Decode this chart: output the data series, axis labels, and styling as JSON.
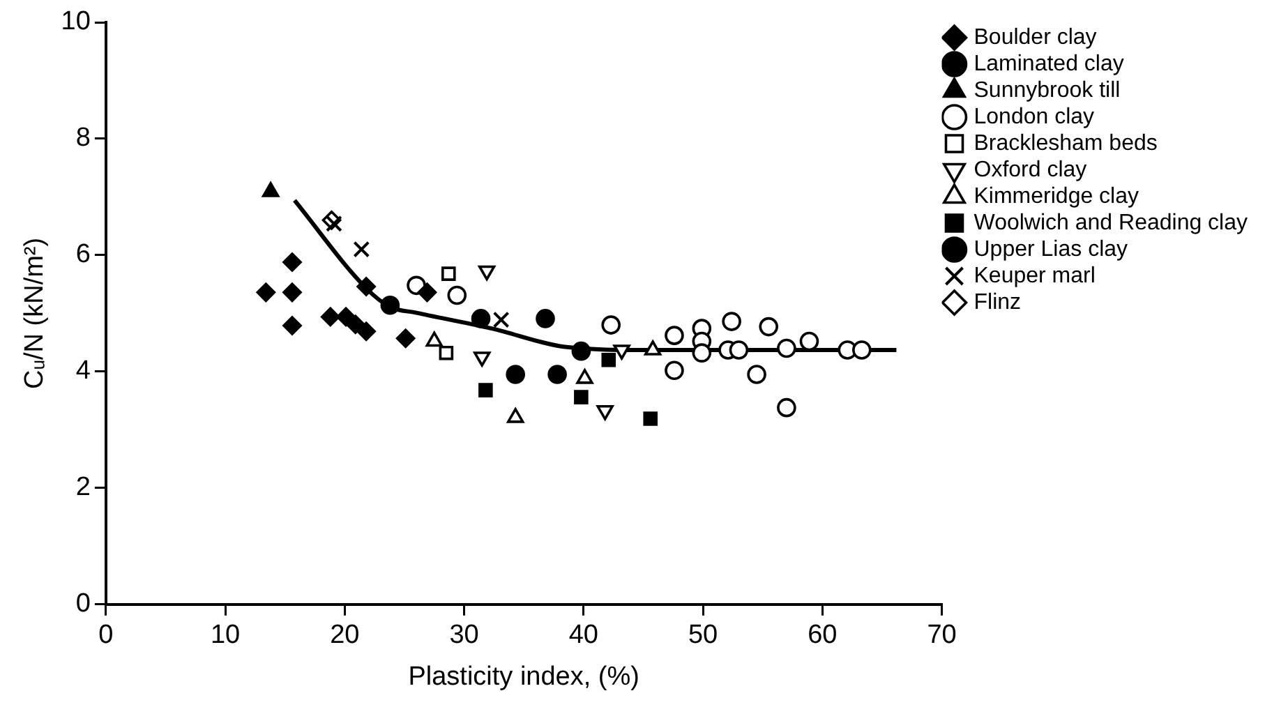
{
  "chart_data": {
    "type": "scatter",
    "xlabel": "Plasticity index, (%)",
    "ylabel": "Cᵤ/N (kN/m²)",
    "xlim": [
      0,
      70
    ],
    "xticks": [
      0,
      10,
      20,
      30,
      40,
      50,
      60,
      70
    ],
    "ylim": [
      0,
      10
    ],
    "yticks": [
      0,
      2,
      4,
      6,
      8,
      10
    ],
    "grid": false,
    "legend": "right",
    "series": [
      {
        "name": "Boulder clay",
        "color": "#000000",
        "marker": "diamond",
        "x": [
          13.4,
          15.6,
          15.6,
          15.6,
          18.8,
          20.1,
          20.9,
          21.8,
          21.8,
          25.1,
          26.9
        ],
        "values": [
          5.36,
          5.88,
          5.36,
          4.79,
          4.94,
          4.94,
          4.81,
          4.69,
          5.46,
          4.57,
          5.36
        ]
      },
      {
        "name": "Laminated clay",
        "color": "#000000",
        "marker": "circle",
        "x": [
          23.8,
          31.4,
          39.8
        ],
        "values": [
          5.14,
          4.91,
          4.35
        ]
      },
      {
        "name": "Sunnybrook till",
        "color": "#000000",
        "marker": "triangle",
        "x": [
          13.8
        ],
        "values": [
          7.09
        ]
      },
      {
        "name": "London clay",
        "color": "#000000",
        "marker": "circle-open",
        "x": [
          26.0,
          29.4,
          42.3,
          47.6,
          47.6,
          49.9,
          49.9,
          49.9,
          52.4,
          52.1,
          53.0,
          55.5,
          54.5,
          57.0,
          58.9,
          57.0,
          62.1,
          63.3
        ],
        "values": [
          5.48,
          5.31,
          4.8,
          4.62,
          4.02,
          4.74,
          4.52,
          4.32,
          4.86,
          4.37,
          4.37,
          4.77,
          3.95,
          4.4,
          4.52,
          3.38,
          4.37,
          4.37
        ]
      },
      {
        "name": "Bracklesham beds",
        "color": "#000000",
        "marker": "square-open",
        "x": [
          28.7,
          28.5
        ],
        "values": [
          5.68,
          4.32
        ]
      },
      {
        "name": "Oxford clay",
        "color": "#000000",
        "marker": "triangle-down-open",
        "x": [
          31.9,
          31.5,
          41.8,
          43.2
        ],
        "values": [
          5.73,
          4.25,
          3.33,
          4.37
        ]
      },
      {
        "name": "Kimmeridge clay",
        "color": "#000000",
        "marker": "triangle-open",
        "x": [
          27.5,
          34.3,
          40.1,
          45.8
        ],
        "values": [
          4.52,
          3.21,
          3.88,
          4.37
        ]
      },
      {
        "name": "Woolwich and Reading clay",
        "color": "#000000",
        "marker": "square",
        "x": [
          31.8,
          39.8,
          42.1,
          45.6
        ],
        "values": [
          3.68,
          3.56,
          4.2,
          3.19
        ]
      },
      {
        "name": "Upper Lias clay",
        "color": "#000000",
        "marker": "circle",
        "x": [
          36.8,
          34.3,
          37.8
        ],
        "values": [
          4.91,
          3.95,
          3.95
        ]
      },
      {
        "name": "Keuper marl",
        "color": "#000000",
        "marker": "cross",
        "x": [
          19.1,
          21.4,
          33.1
        ],
        "values": [
          6.54,
          6.1,
          4.89
        ]
      },
      {
        "name": "Flinz",
        "color": "#000000",
        "marker": "diamond-open",
        "x": [
          18.9
        ],
        "values": [
          6.6
        ]
      },
      {
        "type": "line",
        "color": "#000000",
        "marker": "none",
        "line_style": "solid",
        "x": [
          15.8,
          21.8,
          23.8,
          26.0,
          32.3,
          38.6,
          45.0,
          55.0,
          66.2
        ],
        "values": [
          6.94,
          5.43,
          5.11,
          5.01,
          4.74,
          4.42,
          4.37,
          4.37,
          4.37
        ]
      }
    ]
  }
}
